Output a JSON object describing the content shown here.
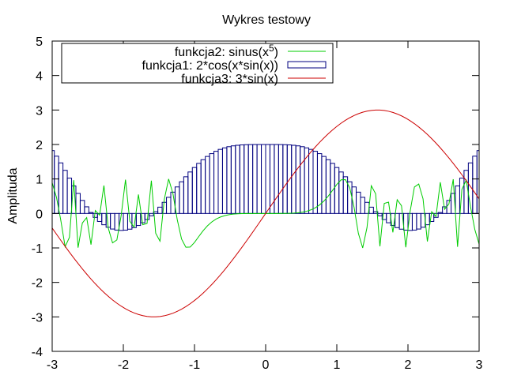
{
  "chart_data": {
    "type": "line",
    "title": "Wykres testowy",
    "xlabel": "",
    "ylabel": "Amplituda",
    "xlim": [
      -3,
      3
    ],
    "ylim": [
      -4,
      5
    ],
    "xticks": [
      -3,
      -2,
      -1,
      0,
      1,
      2,
      3
    ],
    "yticks": [
      -4,
      -3,
      -2,
      -1,
      0,
      1,
      2,
      3,
      4,
      5
    ],
    "grid": false,
    "legend_position": "top-left, boxed",
    "series": [
      {
        "name": "funkcja2: sinus(x^5)",
        "legend_main": "funkcja2: sinus(x",
        "legend_sup": "5",
        "legend_tail": ")",
        "style": "line",
        "color": "#00cc00",
        "expression": "sin(x^5)",
        "samples": 100
      },
      {
        "name": "funkcja1: 2*cos(x*sin(x))",
        "legend_main": "funkcja1: 2*cos(x*sin(x))",
        "style": "boxes",
        "color": "#00007f",
        "expression": "2*cos(x*sin(x))",
        "samples": 100
      },
      {
        "name": "funkcja3: 3*sin(x)",
        "legend_main": "funkcja3: 3*sin(x)",
        "style": "line",
        "color": "#cc0000",
        "expression": "3*sin(x)",
        "samples": 100
      }
    ]
  }
}
